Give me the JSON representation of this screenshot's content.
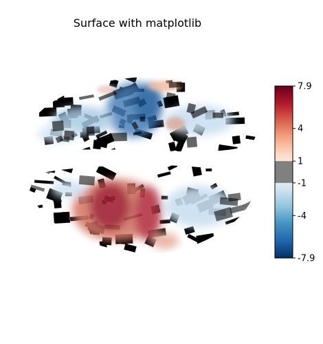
{
  "chart_data": {
    "type": "heatmap",
    "title": "Surface with matplotlib",
    "subtitle": "",
    "xlabel": "",
    "ylabel": "",
    "grid": false,
    "colorbar": {
      "ticks": [
        7.9,
        4,
        1,
        -1,
        -4,
        -7.9
      ],
      "tick_labels": [
        "7.9",
        "4",
        "1",
        "-1",
        "-4",
        "-7.9"
      ],
      "vmin": -7.9,
      "vmax": 7.9,
      "threshold": 1,
      "threshold_color": "#808080",
      "colormap": "RdBu_r",
      "cmap_stops": [
        "#053061",
        "#2166ac",
        "#4393c3",
        "#92c5de",
        "#d1e5f0",
        "#f7f7f7",
        "#fddbc7",
        "#f4a582",
        "#d6604d",
        "#b2182b",
        "#67001f"
      ]
    },
    "background_colors": {
      "sulcal": "#000000",
      "gyral": "#ffffff"
    }
  }
}
